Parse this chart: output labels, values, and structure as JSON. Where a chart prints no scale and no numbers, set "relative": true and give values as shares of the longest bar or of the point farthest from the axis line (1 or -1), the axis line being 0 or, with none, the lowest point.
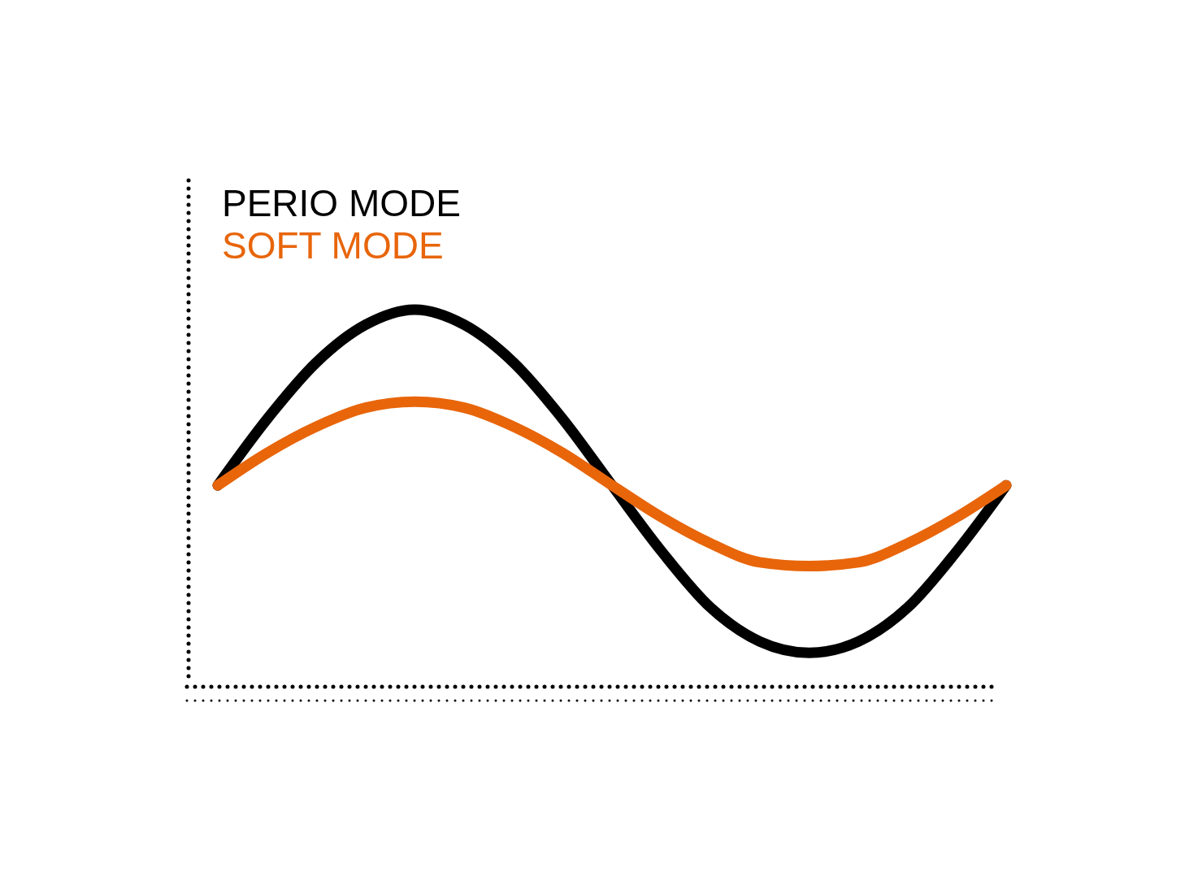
{
  "chart_data": {
    "type": "line",
    "relative": true,
    "legend": "top left",
    "line_style": "solid",
    "marker": "none",
    "categories": [
      null,
      null,
      null,
      null,
      null,
      null,
      null,
      null,
      null,
      null,
      null,
      null,
      null,
      null,
      null,
      null,
      null
    ],
    "series": [
      {
        "name": "PERIO MODE",
        "color": "#000000",
        "values": [
          0.534,
          0.71,
          0.86,
          0.96,
          1.0,
          0.96,
          0.86,
          0.71,
          0.534,
          0.36,
          0.21,
          0.12,
          0.09,
          0.12,
          0.21,
          0.36,
          0.534
        ]
      },
      {
        "name": "SOFT MODE",
        "color": "#e8650a",
        "values": [
          0.534,
          0.62,
          0.69,
          0.74,
          0.756,
          0.74,
          0.69,
          0.62,
          0.534,
          0.45,
          0.38,
          0.33,
          0.32,
          0.33,
          0.38,
          0.45,
          0.534
        ]
      }
    ]
  }
}
